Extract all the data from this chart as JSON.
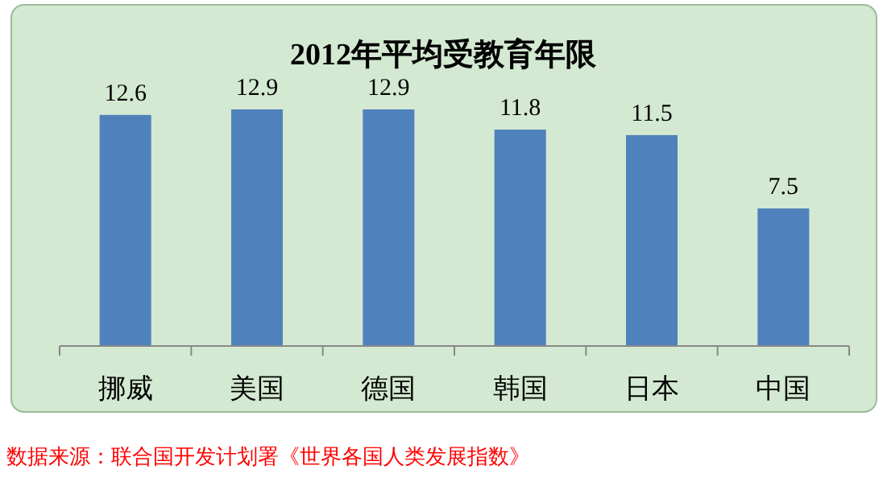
{
  "chart_data": {
    "type": "bar",
    "title": "2012年平均受教育年限",
    "categories": [
      "挪威",
      "美国",
      "德国",
      "韩国",
      "日本",
      "中国"
    ],
    "values": [
      12.6,
      12.9,
      12.9,
      11.8,
      11.5,
      7.5
    ],
    "color": "#4f81bd",
    "data_labels": true,
    "annotations": [
      "数据来源：联合国开发计划署《世界各国人类发展指数》"
    ]
  }
}
